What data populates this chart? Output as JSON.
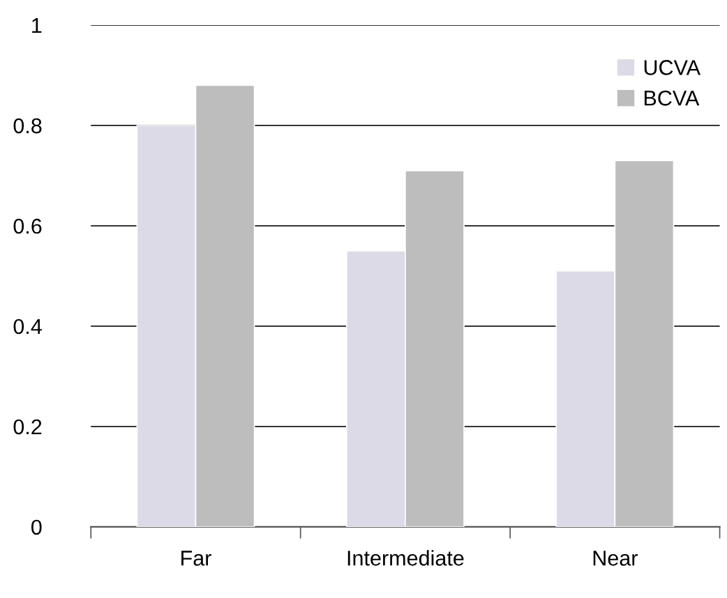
{
  "chart_data": {
    "type": "bar",
    "categories": [
      "Far",
      "Intermediate",
      "Near"
    ],
    "series": [
      {
        "name": "UCVA",
        "color": "#dcdae6",
        "values": [
          0.8,
          0.55,
          0.51
        ]
      },
      {
        "name": "BCVA",
        "color": "#bdbdbd",
        "values": [
          0.88,
          0.71,
          0.73
        ]
      }
    ],
    "ylim": [
      0,
      1
    ],
    "yticks": [
      0,
      0.2,
      0.4,
      0.6,
      0.8,
      1
    ],
    "grid": "y",
    "legend": "top right"
  }
}
